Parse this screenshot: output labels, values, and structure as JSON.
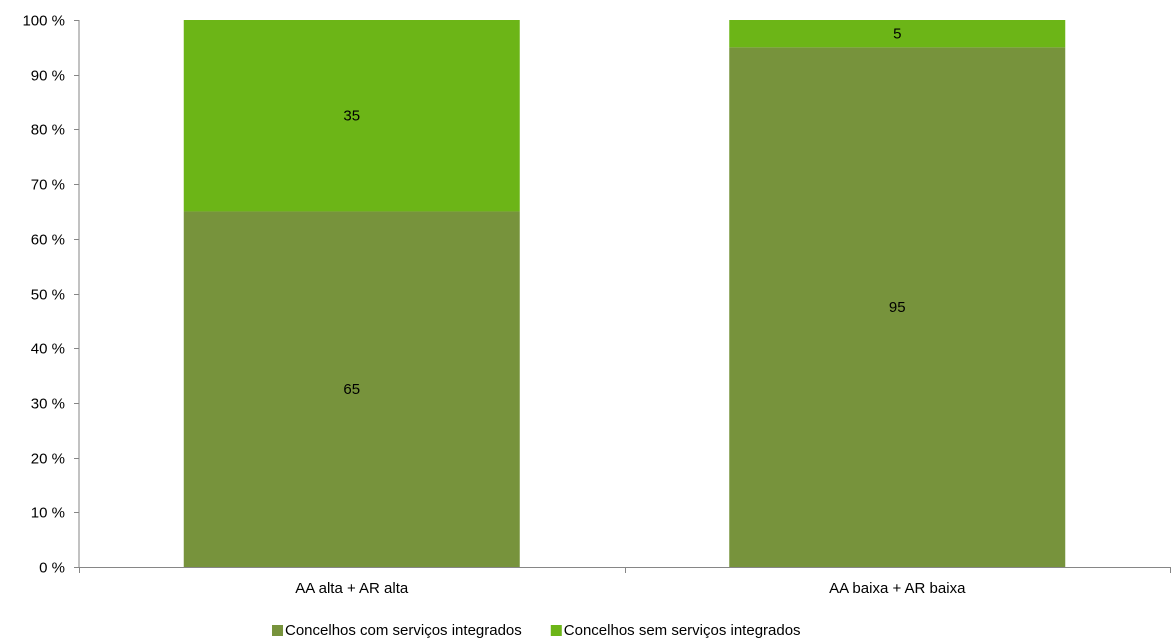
{
  "chart_data": {
    "type": "bar",
    "stacked": true,
    "categories": [
      "AA alta + AR alta",
      "AA baixa + AR baixa"
    ],
    "series": [
      {
        "name": "Concelhos com serviços integrados",
        "values": [
          65,
          95
        ],
        "color": "#77933c"
      },
      {
        "name": "Concelhos sem serviços integrados",
        "values": [
          35,
          5
        ],
        "color": "#6cb517"
      }
    ],
    "ylim": [
      0,
      100
    ],
    "yticks": [
      0,
      10,
      20,
      30,
      40,
      50,
      60,
      70,
      80,
      90,
      100
    ],
    "ytick_labels": [
      "0 %",
      "10 %",
      "20 %",
      "30 %",
      "40 %",
      "50 %",
      "60 %",
      "70 %",
      "80 %",
      "90 %",
      "100 %"
    ],
    "title": "",
    "xlabel": "",
    "ylabel": "",
    "grid": false,
    "legend_position": "bottom"
  }
}
